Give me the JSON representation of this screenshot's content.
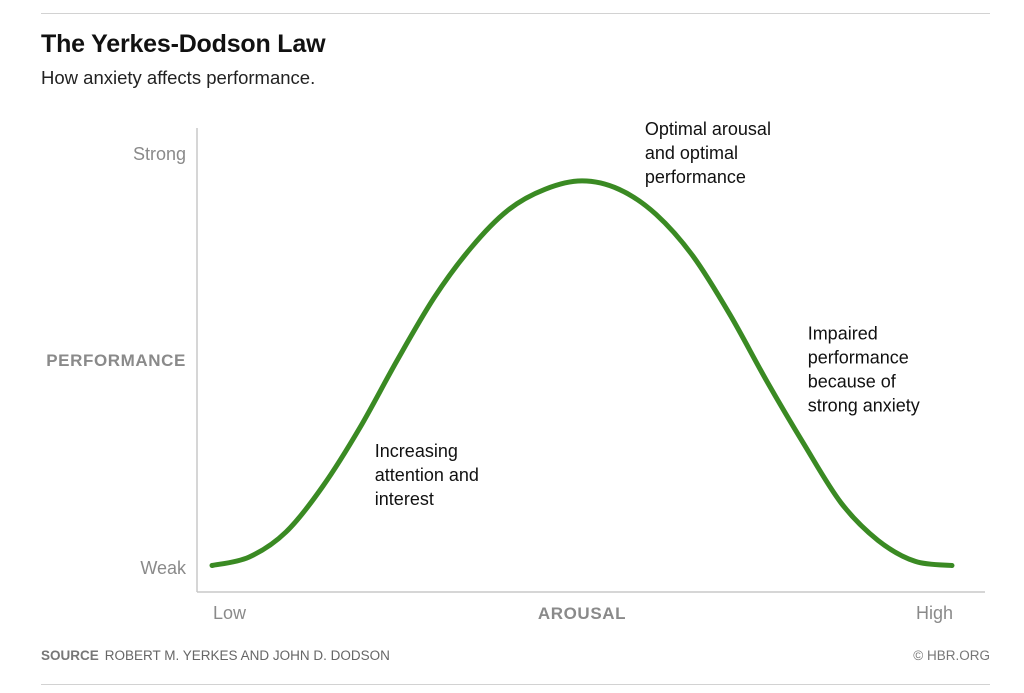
{
  "header": {
    "title": "The Yerkes-Dodson Law",
    "subtitle": "How anxiety affects performance."
  },
  "footer": {
    "source_label": "SOURCE",
    "source_text": "ROBERT M. YERKES AND JOHN D. DODSON",
    "copyright": "© HBR.ORG"
  },
  "colors": {
    "curve": "#3a8a23",
    "axis": "#c8c8c8",
    "axis_label": "#8a8a8a",
    "annotation": "#111111"
  },
  "chart_data": {
    "type": "line",
    "title": "The Yerkes-Dodson Law",
    "subtitle": "How anxiety affects performance.",
    "xlabel": "AROUSAL",
    "ylabel": "PERFORMANCE",
    "x_tick_labels": [
      "Low",
      "High"
    ],
    "y_tick_labels": [
      "Weak",
      "Strong"
    ],
    "xlim": [
      0,
      1
    ],
    "ylim": [
      0,
      1
    ],
    "grid": false,
    "series": [
      {
        "x": [
          0,
          0.05,
          0.1,
          0.15,
          0.2,
          0.25,
          0.3,
          0.35,
          0.4,
          0.45,
          0.5,
          0.55,
          0.6,
          0.65,
          0.7,
          0.75,
          0.8,
          0.85,
          0.9,
          0.95,
          1.0
        ],
        "y": [
          0.03,
          0.05,
          0.11,
          0.22,
          0.36,
          0.52,
          0.67,
          0.79,
          0.88,
          0.93,
          0.95,
          0.93,
          0.87,
          0.77,
          0.63,
          0.47,
          0.32,
          0.18,
          0.09,
          0.04,
          0.03
        ]
      }
    ],
    "annotations": [
      {
        "lines": [
          "Increasing",
          "attention and",
          "interest"
        ],
        "x": 0.22,
        "y": 0.29
      },
      {
        "lines": [
          "Optimal arousal",
          "and optimal",
          "performance"
        ],
        "x": 0.585,
        "y": 1.06
      },
      {
        "lines": [
          "Impaired",
          "performance",
          "because of",
          "strong anxiety"
        ],
        "x": 0.805,
        "y": 0.57
      }
    ]
  }
}
